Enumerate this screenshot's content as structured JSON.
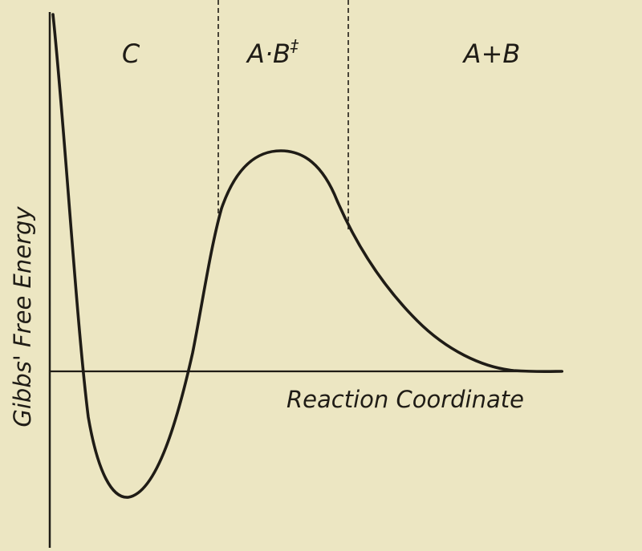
{
  "diagram": {
    "y_axis_label": "Gibbs' Free Energy",
    "x_axis_label": "Reaction Coordinate",
    "regions": [
      {
        "label": "C"
      },
      {
        "label": "A·B",
        "superscript": "‡"
      },
      {
        "label": "A+B"
      }
    ],
    "colors": {
      "paper": "#ece6c2",
      "ink": "#1f1c16"
    }
  }
}
